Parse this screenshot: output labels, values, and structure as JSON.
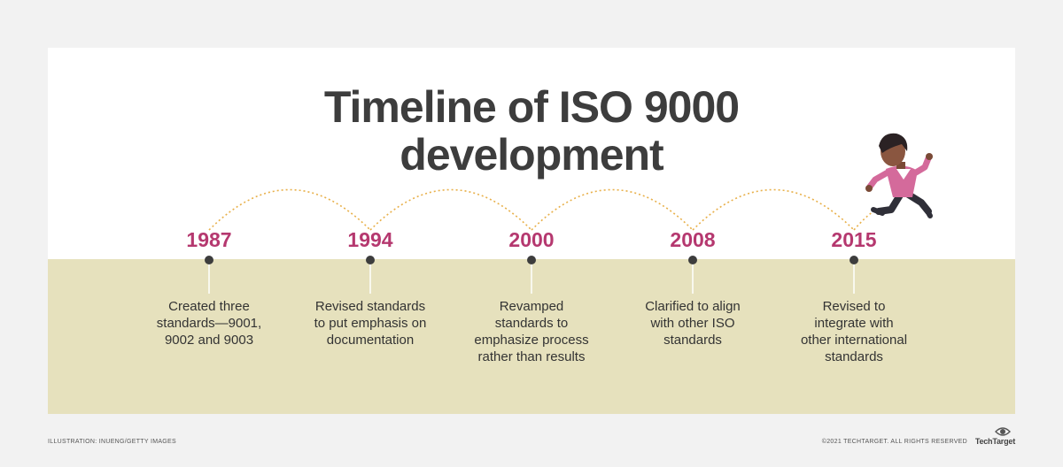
{
  "title_lines": [
    "Timeline of ISO 9000",
    "development"
  ],
  "milestones": [
    {
      "year": "1987",
      "lines": [
        "Created three",
        "standards—9001,",
        "9002 and 9003"
      ]
    },
    {
      "year": "1994",
      "lines": [
        "Revised standards",
        "to put emphasis on",
        "documentation"
      ]
    },
    {
      "year": "2000",
      "lines": [
        "Revamped",
        "standards to",
        "emphasize process",
        "rather than results"
      ]
    },
    {
      "year": "2008",
      "lines": [
        "Clarified to align",
        "with other ISO",
        "standards"
      ]
    },
    {
      "year": "2015",
      "lines": [
        "Revised to",
        "integrate with",
        "other international",
        "standards"
      ]
    }
  ],
  "footer": {
    "credit": "ILLUSTRATION: INUENG/GETTY IMAGES",
    "copyright": "©2021 TECHTARGET. ALL RIGHTS RESERVED",
    "brand": "TechTarget"
  },
  "colors": {
    "band": "#e6e1bd",
    "year": "#b5386f",
    "arc": "#e8b04a",
    "title": "#3d3d3d"
  },
  "icons": [
    "running-person-illustration",
    "techtarget-eye-icon"
  ]
}
